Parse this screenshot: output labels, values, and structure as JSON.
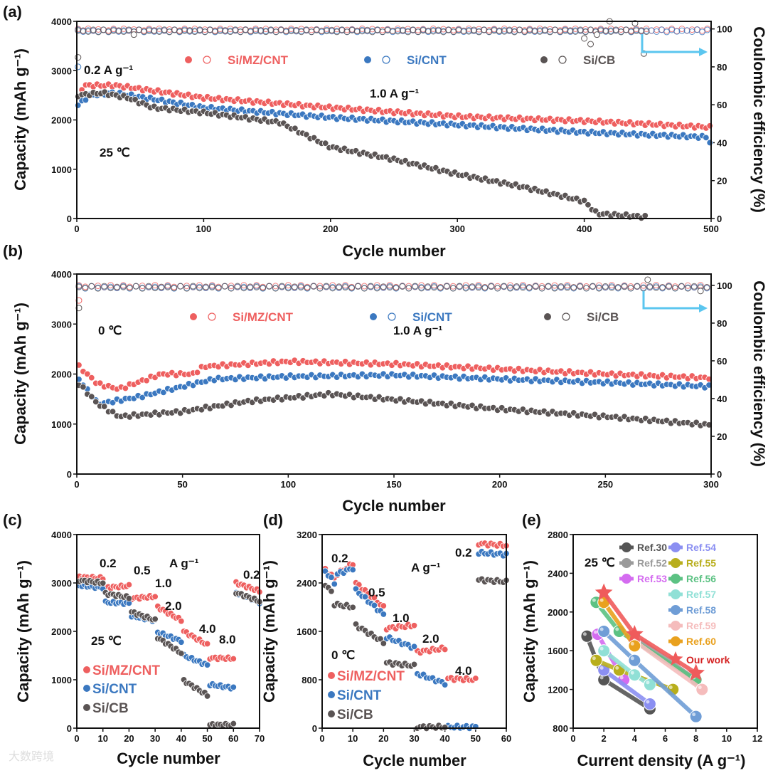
{
  "colors": {
    "mz": "#ee5f5f",
    "cnt": "#3b78c0",
    "cb": "#5a5454",
    "arrow": "#5bc6ef"
  },
  "watermark": "大数跨境",
  "chart_data": [
    {
      "panel": "(a)",
      "type": "scatter",
      "xlabel": "Cycle number",
      "ylabel": "Capacity (mAh g⁻¹)",
      "y2label": "Coulombic efficiency (%)",
      "xlim": [
        0,
        500
      ],
      "ylim": [
        0,
        4000
      ],
      "y2lim": [
        0,
        104
      ],
      "xticks": [
        0,
        100,
        200,
        300,
        400,
        500
      ],
      "yticks": [
        0,
        1000,
        2000,
        3000,
        4000
      ],
      "y2ticks": [
        0,
        20,
        40,
        60,
        80,
        100
      ],
      "annotations": [
        "0.2 A g⁻¹",
        "1.0 A g⁻¹",
        "25 ℃"
      ],
      "legend": [
        "Si/MZ/CNT",
        "Si/CNT",
        "Si/CB"
      ],
      "series": [
        {
          "name": "Si/MZ/CNT",
          "color": "#ee5f5f",
          "step": 3,
          "points": [
            [
              1,
              2450
            ],
            [
              5,
              2700
            ],
            [
              30,
              2700
            ],
            [
              100,
              2450
            ],
            [
              200,
              2250
            ],
            [
              300,
              2070
            ],
            [
              400,
              1980
            ],
            [
              500,
              1850
            ]
          ],
          "ce": 99.5,
          "ce_outliers": []
        },
        {
          "name": "Si/CNT",
          "color": "#3b78c0",
          "step": 3,
          "points": [
            [
              1,
              2300
            ],
            [
              10,
              2500
            ],
            [
              30,
              2550
            ],
            [
              100,
              2250
            ],
            [
              200,
              2050
            ],
            [
              300,
              1900
            ],
            [
              400,
              1750
            ],
            [
              498,
              1650
            ],
            [
              500,
              1450
            ]
          ],
          "ce": 99,
          "ce_outliers": [
            [
              1,
              80
            ]
          ]
        },
        {
          "name": "Si/CB",
          "color": "#5a5454",
          "step": 3,
          "points": [
            [
              1,
              2500
            ],
            [
              20,
              2550
            ],
            [
              40,
              2450
            ],
            [
              60,
              2250
            ],
            [
              100,
              2150
            ],
            [
              160,
              1950
            ],
            [
              200,
              1450
            ],
            [
              250,
              1200
            ],
            [
              300,
              900
            ],
            [
              350,
              650
            ],
            [
              400,
              350
            ],
            [
              410,
              100
            ],
            [
              450,
              30
            ]
          ],
          "ce": 99,
          "ce_outliers": [
            [
              1,
              85
            ],
            [
              45,
              97
            ],
            [
              400,
              95
            ],
            [
              405,
              92
            ],
            [
              410,
              97
            ],
            [
              420,
              104
            ],
            [
              440,
              103
            ],
            [
              447,
              87
            ]
          ]
        }
      ]
    },
    {
      "panel": "(b)",
      "type": "scatter",
      "xlabel": "Cycle number",
      "ylabel": "Capacity (mAh g⁻¹)",
      "y2label": "Coulombic efficiency (%)",
      "xlim": [
        0,
        300
      ],
      "ylim": [
        0,
        4000
      ],
      "y2lim": [
        0,
        106
      ],
      "xticks": [
        0,
        50,
        100,
        150,
        200,
        250,
        300
      ],
      "yticks": [
        0,
        1000,
        2000,
        3000,
        4000
      ],
      "y2ticks": [
        0,
        20,
        40,
        60,
        80,
        100
      ],
      "annotations": [
        "0 ℃",
        "1.0 A g⁻¹"
      ],
      "legend": [
        "Si/MZ/CNT",
        "Si/CNT",
        "Si/CB"
      ],
      "series": [
        {
          "name": "Si/MZ/CNT",
          "color": "#ee5f5f",
          "step": 2,
          "points": [
            [
              1,
              2150
            ],
            [
              10,
              1800
            ],
            [
              20,
              1700
            ],
            [
              40,
              2000
            ],
            [
              55,
              2000
            ],
            [
              60,
              2150
            ],
            [
              100,
              2250
            ],
            [
              150,
              2200
            ],
            [
              200,
              2100
            ],
            [
              250,
              2000
            ],
            [
              300,
              1920
            ]
          ],
          "ce": 99.5,
          "ce_outliers": [
            [
              1,
              92
            ]
          ]
        },
        {
          "name": "Si/CNT",
          "color": "#3b78c0",
          "step": 2,
          "points": [
            [
              1,
              1900
            ],
            [
              10,
              1400
            ],
            [
              30,
              1550
            ],
            [
              65,
              1900
            ],
            [
              100,
              1950
            ],
            [
              150,
              1980
            ],
            [
              200,
              1900
            ],
            [
              250,
              1830
            ],
            [
              300,
              1750
            ]
          ],
          "ce": 99,
          "ce_outliers": []
        },
        {
          "name": "Si/CB",
          "color": "#5a5454",
          "step": 2,
          "points": [
            [
              1,
              1800
            ],
            [
              10,
              1400
            ],
            [
              20,
              1150
            ],
            [
              50,
              1250
            ],
            [
              80,
              1450
            ],
            [
              120,
              1600
            ],
            [
              160,
              1450
            ],
            [
              200,
              1300
            ],
            [
              250,
              1150
            ],
            [
              300,
              980
            ]
          ],
          "ce": 99,
          "ce_outliers": [
            [
              1,
              88
            ],
            [
              270,
              103
            ],
            [
              295,
              97
            ]
          ]
        }
      ]
    },
    {
      "panel": "(c)",
      "type": "scatter",
      "xlabel": "Cycle number",
      "ylabel": "Capacity (mAh g⁻¹)",
      "xlim": [
        0,
        70
      ],
      "ylim": [
        0,
        4000
      ],
      "xticks": [
        0,
        10,
        20,
        30,
        40,
        50,
        60,
        70
      ],
      "yticks": [
        0,
        1000,
        2000,
        3000,
        4000
      ],
      "annotations": [
        "0.2",
        "0.5",
        "1.0",
        "2.0",
        "4.0",
        "8.0",
        "0.2",
        "A g⁻¹",
        "25 ℃"
      ],
      "legend": [
        "Si/MZ/CNT",
        "Si/CNT",
        "Si/CB"
      ],
      "series": [
        {
          "name": "Si/MZ/CNT",
          "color": "#ee5f5f",
          "segments": [
            [
              1,
              10,
              3120,
              3100
            ],
            [
              11,
              20,
              2900,
              2940
            ],
            [
              21,
              30,
              2680,
              2720
            ],
            [
              31,
              40,
              2500,
              2230
            ],
            [
              41,
              50,
              2000,
              1720
            ],
            [
              51,
              60,
              1450,
              1440
            ],
            [
              61,
              70,
              3000,
              2830
            ]
          ]
        },
        {
          "name": "Si/CNT",
          "color": "#3b78c0",
          "segments": [
            [
              1,
              10,
              2950,
              2900
            ],
            [
              11,
              20,
              2600,
              2580
            ],
            [
              21,
              30,
              2320,
              2220
            ],
            [
              31,
              40,
              1980,
              1800
            ],
            [
              41,
              50,
              1500,
              1300
            ],
            [
              51,
              60,
              900,
              830
            ],
            [
              61,
              70,
              2800,
              2600
            ]
          ]
        },
        {
          "name": "Si/CB",
          "color": "#5a5454",
          "segments": [
            [
              1,
              10,
              3050,
              3000
            ],
            [
              11,
              20,
              2780,
              2700
            ],
            [
              21,
              30,
              2400,
              2230
            ],
            [
              31,
              40,
              1870,
              1550
            ],
            [
              41,
              50,
              980,
              680
            ],
            [
              51,
              60,
              70,
              70
            ],
            [
              61,
              70,
              2800,
              2620
            ]
          ]
        }
      ]
    },
    {
      "panel": "(d)",
      "type": "scatter",
      "xlabel": "Cycle number",
      "ylabel": "Capacity (mAh g⁻¹)",
      "xlim": [
        0,
        60
      ],
      "ylim": [
        0,
        3200
      ],
      "xticks": [
        0,
        10,
        20,
        30,
        40,
        50,
        60
      ],
      "yticks": [
        0,
        800,
        1600,
        2400,
        3200
      ],
      "annotations": [
        "0.2",
        "0.5",
        "1.0",
        "2.0",
        "4.0",
        "0.2",
        "A g⁻¹",
        "0 ℃"
      ],
      "legend": [
        "Si/MZ/CNT",
        "Si/CNT",
        "Si/CB"
      ],
      "series": [
        {
          "name": "Si/MZ/CNT",
          "color": "#ee5f5f",
          "segments": [
            [
              1,
              4,
              2620,
              2480
            ],
            [
              5,
              10,
              2550,
              2720
            ],
            [
              11,
              20,
              2400,
              2000
            ],
            [
              21,
              30,
              1650,
              1700
            ],
            [
              31,
              40,
              1260,
              1320
            ],
            [
              41,
              50,
              820,
              800
            ],
            [
              51,
              60,
              3050,
              3020
            ]
          ]
        },
        {
          "name": "Si/CNT",
          "color": "#3b78c0",
          "segments": [
            [
              1,
              4,
              2600,
              2400
            ],
            [
              5,
              10,
              2550,
              2640
            ],
            [
              11,
              20,
              2280,
              1880
            ],
            [
              21,
              30,
              1500,
              1330
            ],
            [
              31,
              40,
              900,
              740
            ],
            [
              41,
              50,
              20,
              20
            ],
            [
              51,
              60,
              2900,
              2870
            ]
          ]
        },
        {
          "name": "Si/CB",
          "color": "#5a5454",
          "segments": [
            [
              1,
              3,
              2380,
              2250
            ],
            [
              4,
              10,
              2050,
              2000
            ],
            [
              11,
              20,
              1700,
              1420
            ],
            [
              21,
              30,
              1080,
              1030
            ],
            [
              31,
              40,
              20,
              20
            ],
            [
              51,
              60,
              2450,
              2420
            ]
          ]
        }
      ]
    },
    {
      "panel": "(e)",
      "type": "line",
      "xlabel": "Current density (A g⁻¹)",
      "ylabel": "Capacity (mAh g⁻¹)",
      "xlim": [
        0,
        12
      ],
      "ylim": [
        800,
        2800
      ],
      "xticks": [
        0,
        2,
        4,
        6,
        8,
        10,
        12
      ],
      "yticks": [
        800,
        1200,
        1600,
        2000,
        2400,
        2800
      ],
      "annotations": [
        "25 ℃"
      ],
      "series": [
        {
          "name": "Ref.30",
          "color": "#555555",
          "points": [
            [
              0.9,
              1750
            ],
            [
              2,
              1300
            ],
            [
              5,
              1000
            ]
          ]
        },
        {
          "name": "Ref.52",
          "color": "#9a9a9a",
          "points": [
            [
              4,
              1750
            ],
            [
              8,
              1300
            ]
          ]
        },
        {
          "name": "Ref.53",
          "color": "#d46cf0",
          "points": [
            [
              1.6,
              1770
            ],
            [
              3.3,
              1300
            ]
          ]
        },
        {
          "name": "Ref.54",
          "color": "#8b8ff2",
          "points": [
            [
              2,
              1400
            ],
            [
              5,
              1050
            ]
          ]
        },
        {
          "name": "Ref.55",
          "color": "#b8ae1c",
          "points": [
            [
              1.5,
              1500
            ],
            [
              3,
              1400
            ],
            [
              6.5,
              1200
            ]
          ]
        },
        {
          "name": "Ref.56",
          "color": "#5cc283",
          "points": [
            [
              1.5,
              2100
            ],
            [
              3,
              1800
            ],
            [
              8,
              1300
            ]
          ]
        },
        {
          "name": "Ref.57",
          "color": "#90e0d6",
          "points": [
            [
              2,
              1600
            ],
            [
              4,
              1350
            ],
            [
              5,
              1250
            ]
          ]
        },
        {
          "name": "Ref.58",
          "color": "#6f9dd6",
          "points": [
            [
              2,
              1800
            ],
            [
              4,
              1500
            ],
            [
              8,
              920
            ]
          ]
        },
        {
          "name": "Ref.59",
          "color": "#f5bcbc",
          "points": [
            [
              4,
              1700
            ],
            [
              8.4,
              1200
            ]
          ]
        },
        {
          "name": "Ref.60",
          "color": "#e9a11e",
          "points": [
            [
              2,
              2100
            ],
            [
              4,
              1650
            ]
          ]
        },
        {
          "name": "Our work",
          "color": "#ef5b5b",
          "marker": "star",
          "points": [
            [
              2,
              2200
            ],
            [
              4,
              1770
            ],
            [
              8,
              1370
            ]
          ]
        }
      ]
    }
  ]
}
